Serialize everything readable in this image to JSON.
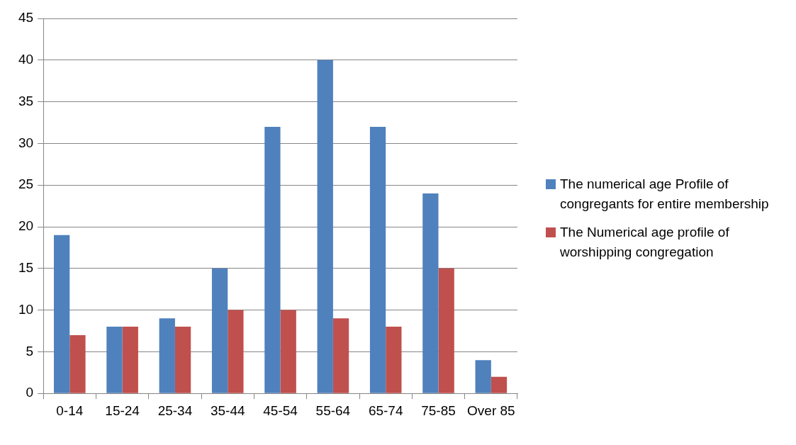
{
  "chart_data": {
    "type": "bar",
    "categories": [
      "0-14",
      "15-24",
      "25-34",
      "35-44",
      "45-54",
      "55-64",
      "65-74",
      "75-85",
      "Over 85"
    ],
    "series": [
      {
        "name": "The numerical age Profile of congregants for entire membership",
        "color": "#4f81bd",
        "values": [
          19,
          8,
          9,
          15,
          32,
          40,
          32,
          24,
          4
        ]
      },
      {
        "name": "The Numerical age profile of worshipping congregation",
        "color": "#c0504d",
        "values": [
          7,
          8,
          8,
          10,
          10,
          9,
          8,
          15,
          2
        ]
      }
    ],
    "ylim": [
      0,
      45
    ],
    "yticks": [
      0,
      5,
      10,
      15,
      20,
      25,
      30,
      35,
      40,
      45
    ],
    "grid": "y",
    "legend": "right"
  }
}
